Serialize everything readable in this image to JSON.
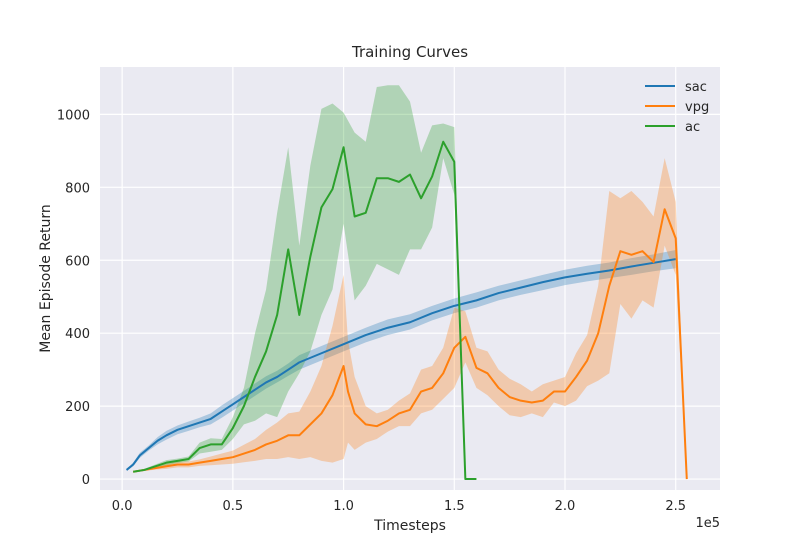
{
  "chart_data": {
    "type": "line",
    "title": "Training Curves",
    "xlabel": "Timesteps",
    "ylabel": "Mean Episode Return",
    "x_scale_label": "1e5",
    "xlim": [
      -0.1,
      2.7
    ],
    "ylim": [
      -30,
      1130
    ],
    "x_ticks": [
      0.0,
      0.5,
      1.0,
      1.5,
      2.0,
      2.5
    ],
    "x_tick_labels": [
      "0.0",
      "0.5",
      "1.0",
      "1.5",
      "2.0",
      "2.5"
    ],
    "y_ticks": [
      0,
      200,
      400,
      600,
      800,
      1000
    ],
    "y_tick_labels": [
      "0",
      "200",
      "400",
      "600",
      "800",
      "1000"
    ],
    "grid": true,
    "legend_position": "top-right",
    "series": [
      {
        "name": "sac",
        "color": "#1f77b4",
        "x": [
          0.02,
          0.05,
          0.08,
          0.12,
          0.16,
          0.2,
          0.25,
          0.3,
          0.35,
          0.4,
          0.45,
          0.5,
          0.55,
          0.6,
          0.65,
          0.7,
          0.75,
          0.8,
          0.9,
          1.0,
          1.1,
          1.2,
          1.3,
          1.4,
          1.5,
          1.6,
          1.7,
          1.8,
          1.9,
          2.0,
          2.1,
          2.2,
          2.3,
          2.4,
          2.5
        ],
        "y": [
          25,
          40,
          65,
          85,
          105,
          120,
          135,
          145,
          155,
          165,
          185,
          205,
          225,
          245,
          265,
          280,
          300,
          320,
          345,
          370,
          395,
          415,
          430,
          455,
          475,
          490,
          510,
          525,
          540,
          553,
          563,
          572,
          583,
          593,
          603
        ],
        "lower": [
          22,
          35,
          58,
          78,
          95,
          108,
          123,
          132,
          142,
          150,
          168,
          188,
          208,
          228,
          248,
          265,
          283,
          300,
          325,
          350,
          375,
          395,
          410,
          435,
          455,
          470,
          490,
          505,
          518,
          532,
          542,
          551,
          560,
          570,
          578
        ],
        "upper": [
          28,
          45,
          72,
          92,
          115,
          132,
          147,
          158,
          168,
          180,
          202,
          222,
          242,
          262,
          282,
          297,
          317,
          340,
          365,
          390,
          415,
          438,
          452,
          475,
          495,
          512,
          530,
          545,
          560,
          574,
          585,
          594,
          606,
          616,
          628
        ]
      },
      {
        "name": "vpg",
        "color": "#ff7f0e",
        "x": [
          0.05,
          0.1,
          0.15,
          0.2,
          0.25,
          0.3,
          0.35,
          0.4,
          0.45,
          0.5,
          0.55,
          0.6,
          0.65,
          0.7,
          0.75,
          0.8,
          0.85,
          0.9,
          0.95,
          1.0,
          1.02,
          1.05,
          1.1,
          1.15,
          1.2,
          1.25,
          1.3,
          1.35,
          1.4,
          1.45,
          1.5,
          1.55,
          1.6,
          1.65,
          1.7,
          1.75,
          1.8,
          1.85,
          1.9,
          1.95,
          2.0,
          2.05,
          2.1,
          2.15,
          2.2,
          2.25,
          2.3,
          2.35,
          2.4,
          2.45,
          2.5,
          2.55
        ],
        "y": [
          20,
          25,
          30,
          35,
          40,
          40,
          45,
          50,
          55,
          60,
          70,
          80,
          95,
          105,
          120,
          120,
          150,
          180,
          230,
          310,
          240,
          180,
          150,
          145,
          160,
          180,
          190,
          240,
          250,
          290,
          360,
          390,
          305,
          290,
          250,
          225,
          215,
          210,
          215,
          240,
          240,
          280,
          325,
          400,
          530,
          625,
          615,
          625,
          595,
          740,
          660,
          0
        ],
        "lower": [
          18,
          22,
          26,
          28,
          32,
          32,
          36,
          38,
          40,
          42,
          46,
          50,
          55,
          55,
          60,
          55,
          60,
          50,
          45,
          55,
          100,
          80,
          100,
          110,
          130,
          145,
          145,
          180,
          190,
          220,
          250,
          320,
          250,
          230,
          200,
          175,
          170,
          180,
          170,
          210,
          200,
          215,
          255,
          270,
          290,
          480,
          440,
          490,
          470,
          640,
          560,
          0
        ],
        "upper": [
          22,
          28,
          34,
          42,
          48,
          48,
          54,
          62,
          70,
          78,
          94,
          110,
          135,
          155,
          180,
          185,
          240,
          310,
          420,
          560,
          380,
          280,
          200,
          180,
          190,
          215,
          235,
          300,
          310,
          360,
          470,
          460,
          360,
          350,
          300,
          275,
          260,
          240,
          260,
          270,
          280,
          345,
          395,
          530,
          790,
          770,
          790,
          760,
          720,
          880,
          760,
          0
        ]
      },
      {
        "name": "ac",
        "color": "#2ca02c",
        "x": [
          0.05,
          0.1,
          0.15,
          0.2,
          0.25,
          0.3,
          0.35,
          0.4,
          0.45,
          0.5,
          0.55,
          0.6,
          0.65,
          0.7,
          0.75,
          0.8,
          0.85,
          0.9,
          0.95,
          1.0,
          1.05,
          1.1,
          1.15,
          1.2,
          1.25,
          1.3,
          1.35,
          1.4,
          1.45,
          1.5,
          1.55,
          1.6
        ],
        "y": [
          20,
          25,
          35,
          45,
          50,
          55,
          85,
          95,
          95,
          140,
          200,
          280,
          350,
          450,
          630,
          450,
          610,
          745,
          795,
          910,
          720,
          730,
          825,
          825,
          815,
          835,
          770,
          830,
          925,
          870,
          0,
          0
        ],
        "lower": [
          18,
          22,
          30,
          38,
          44,
          48,
          70,
          75,
          80,
          110,
          150,
          160,
          180,
          170,
          240,
          290,
          350,
          450,
          520,
          700,
          490,
          530,
          590,
          575,
          560,
          630,
          630,
          690,
          880,
          780,
          0,
          0
        ],
        "upper": [
          22,
          28,
          40,
          52,
          56,
          62,
          100,
          112,
          110,
          170,
          250,
          400,
          520,
          730,
          910,
          640,
          860,
          1015,
          1030,
          1005,
          950,
          925,
          1075,
          1080,
          1080,
          1035,
          895,
          970,
          975,
          965,
          0,
          0
        ]
      }
    ]
  }
}
